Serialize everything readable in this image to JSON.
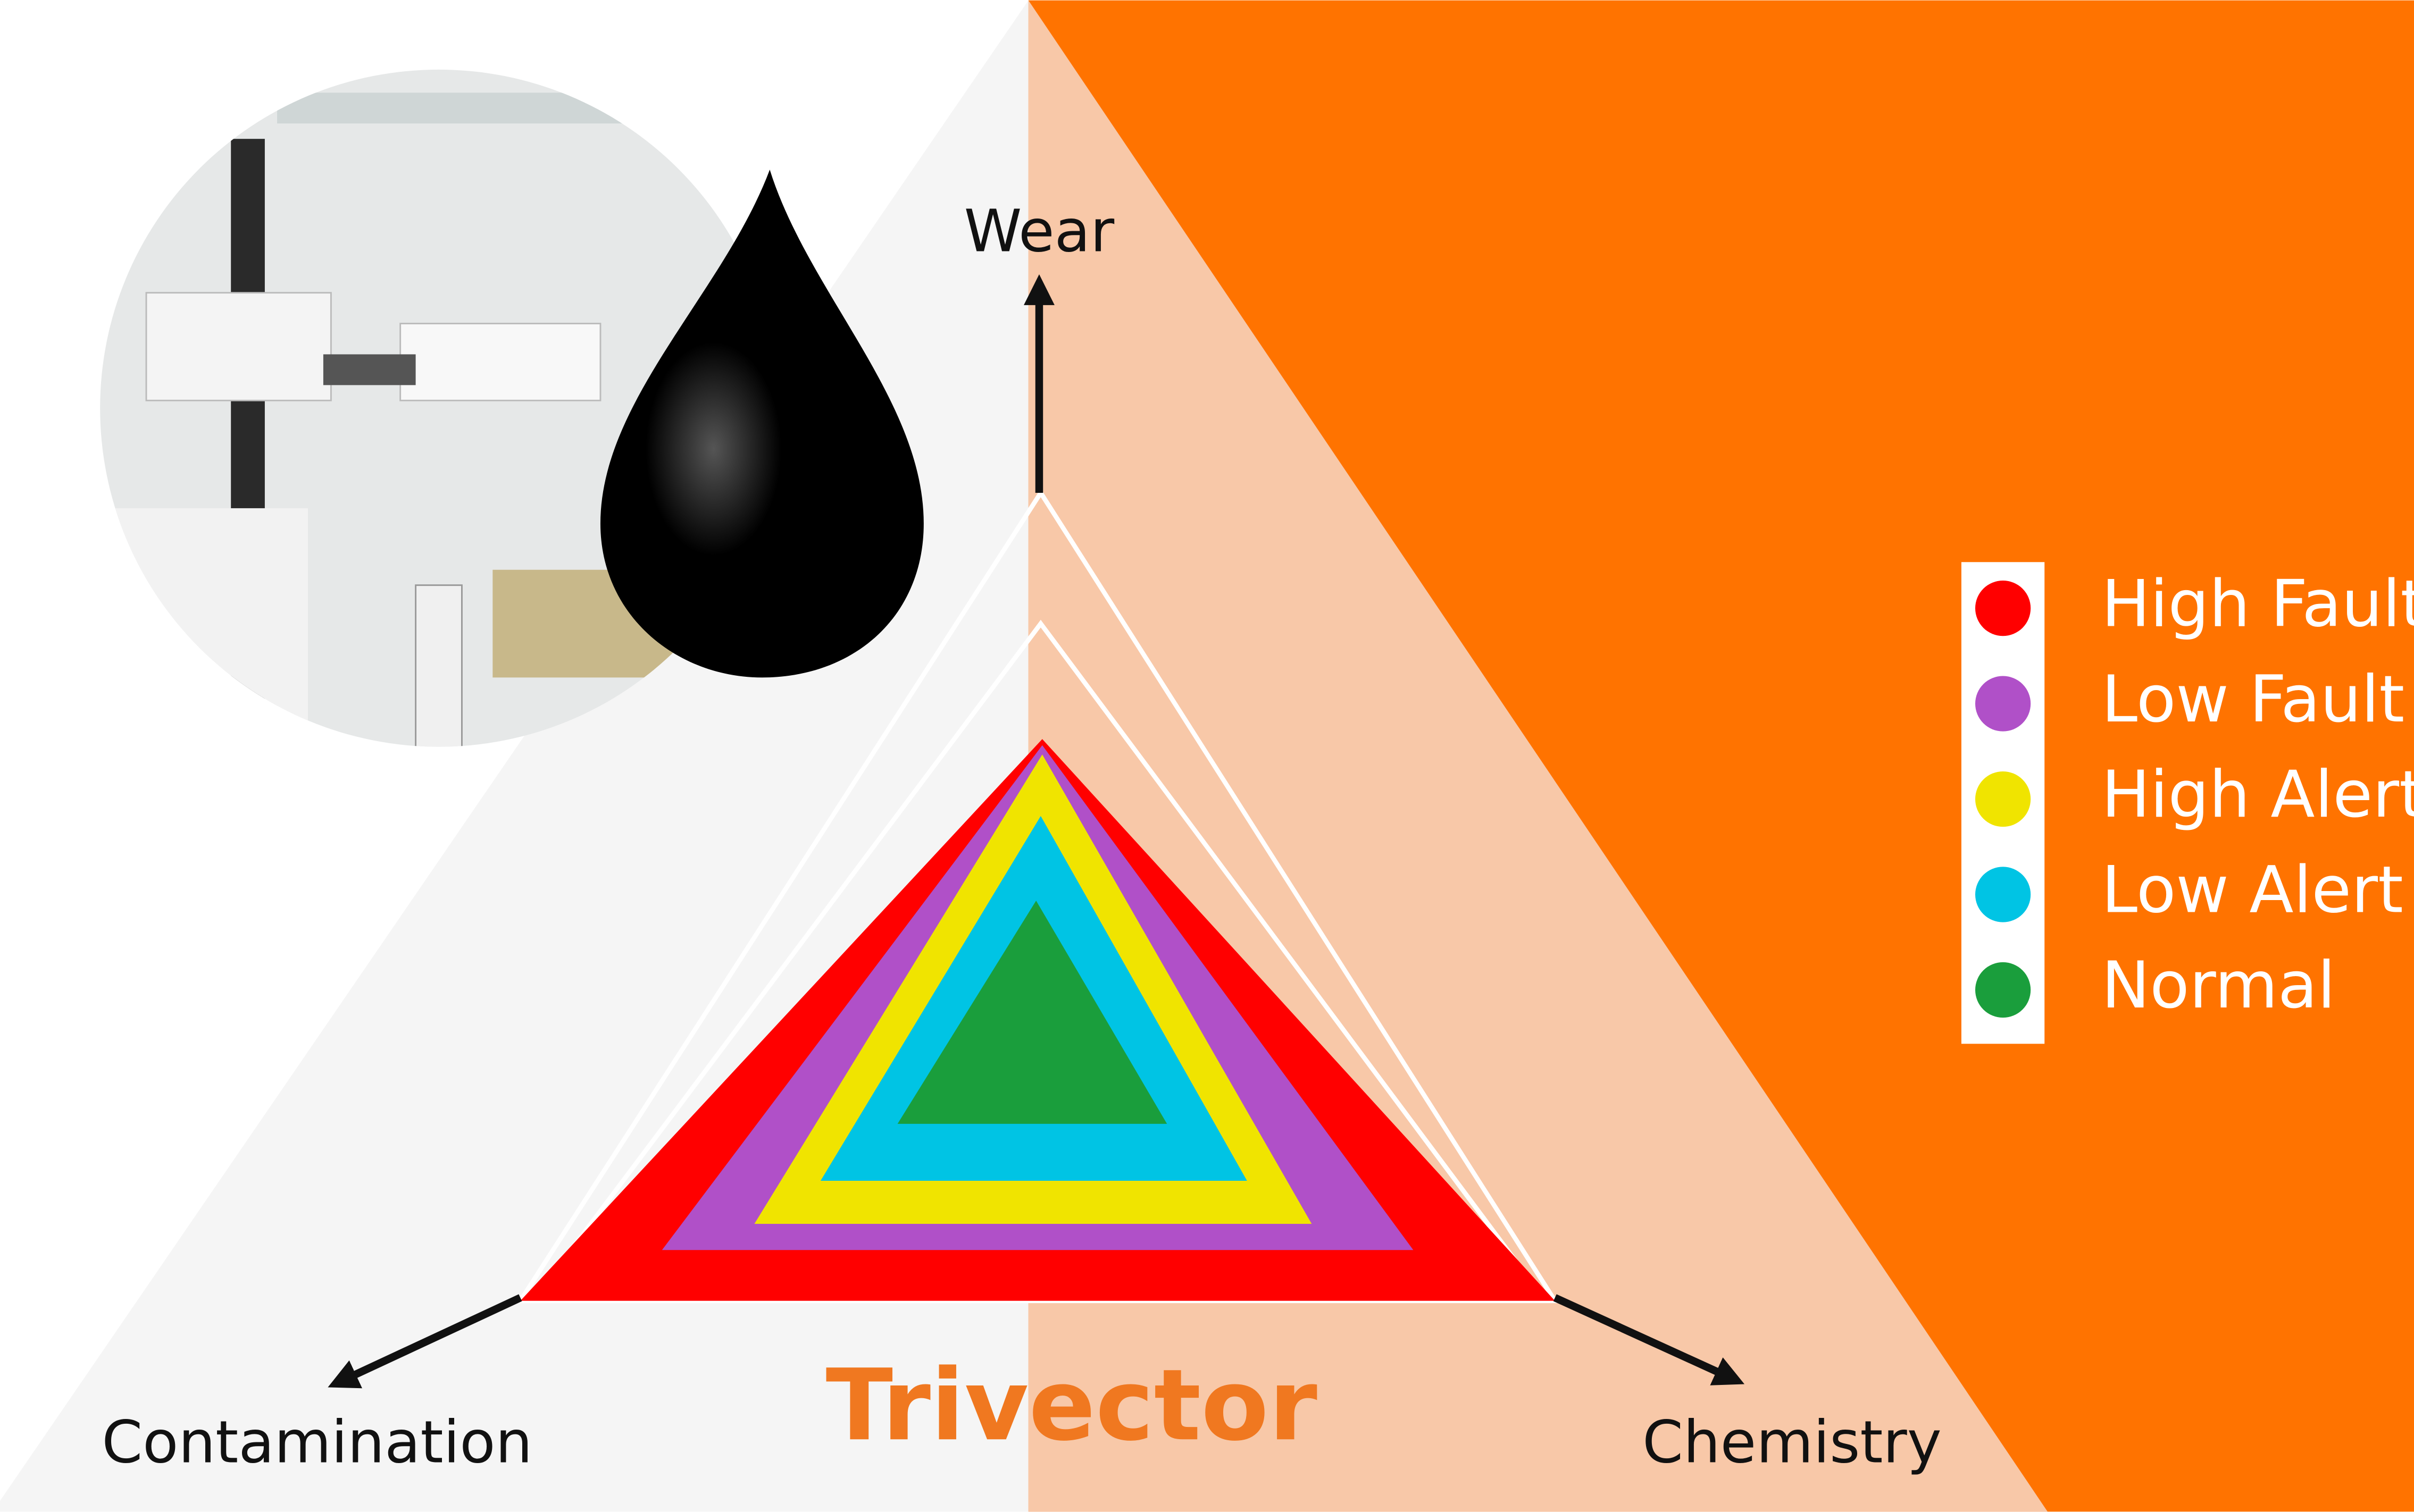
{
  "title": "Trivector",
  "axes": {
    "top": "Wear",
    "left": "Contamination",
    "right": "Chemistry"
  },
  "legend": [
    {
      "name": "High Fault",
      "color": "#ff0000"
    },
    {
      "name": "Low Fault",
      "color": "#b050c8"
    },
    {
      "name": "High Alert",
      "color": "#f0e400"
    },
    {
      "name": "Low Alert",
      "color": "#00c4e4"
    },
    {
      "name": "Normal",
      "color": "#1a9e3c"
    }
  ]
}
